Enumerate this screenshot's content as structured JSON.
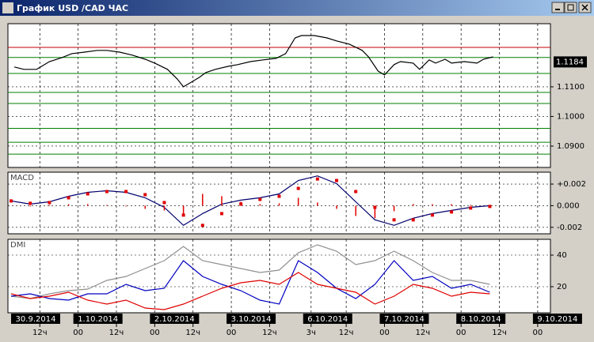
{
  "window": {
    "title": "График USD /CAD  ЧАС"
  },
  "chart_data": [
    {
      "type": "line",
      "color": "#000000",
      "x": [
        -20,
        -17,
        -13,
        -9,
        -5,
        -2,
        2,
        6,
        9,
        13,
        17,
        21,
        24,
        28,
        31,
        33,
        35,
        38,
        40,
        43,
        47,
        50,
        54,
        58,
        62,
        65,
        68,
        70,
        74,
        78,
        81,
        85,
        89,
        91,
        94,
        96,
        99,
        101,
        105,
        107,
        110,
        112,
        115,
        117,
        121,
        125,
        127,
        130
      ],
      "values": [
        1.1167,
        1.1159,
        1.1159,
        1.1185,
        1.1199,
        1.1212,
        1.1217,
        1.1223,
        1.1223,
        1.1217,
        1.1207,
        1.1193,
        1.118,
        1.1159,
        1.1127,
        1.11,
        1.1113,
        1.1132,
        1.1148,
        1.1159,
        1.1169,
        1.1175,
        1.1185,
        1.1191,
        1.1196,
        1.1212,
        1.1265,
        1.1273,
        1.1273,
        1.1265,
        1.1255,
        1.1244,
        1.1223,
        1.1201,
        1.1153,
        1.114,
        1.1175,
        1.1185,
        1.118,
        1.1159,
        1.1191,
        1.118,
        1.1193,
        1.118,
        1.1185,
        1.118,
        1.1193,
        1.1201
      ],
      "xlim": [
        -22,
        148
      ],
      "ylim": [
        1.0828,
        1.1313
      ],
      "yticks": [
        {
          "value": 1.09,
          "label": "1.0900"
        },
        {
          "value": 1.1,
          "label": "1.1000"
        },
        {
          "value": 1.11,
          "label": "1.1100"
        }
      ],
      "last_price": 1.1184,
      "levels": [
        {
          "value": 1.1233,
          "color": "#c00000"
        },
        {
          "value": 1.1199,
          "color": "#008000"
        },
        {
          "value": 1.1145,
          "color": "#008000"
        },
        {
          "value": 1.1081,
          "color": "#008000"
        },
        {
          "value": 1.1044,
          "color": "#008000"
        },
        {
          "value": 1.096,
          "color": "#008000"
        },
        {
          "value": 1.0913,
          "color": "#008000"
        },
        {
          "value": 1.0873,
          "color": "#008000"
        }
      ]
    },
    {
      "type": "line",
      "title": "MACD",
      "x": [
        -21,
        -15,
        -9,
        -3,
        3,
        9,
        15,
        21,
        27,
        33,
        39,
        45,
        51,
        57,
        63,
        69,
        75,
        81,
        87,
        93,
        99,
        105,
        111,
        117,
        123,
        129
      ],
      "xlim": [
        -22,
        148
      ],
      "ylim": [
        -0.0026,
        0.0031
      ],
      "yticks": [
        {
          "value": -0.002,
          "label": "-0.002"
        },
        {
          "value": 0,
          "label": "0.000"
        },
        {
          "value": 0.002,
          "label": "+0.002"
        }
      ],
      "series": [
        {
          "color": "#00006e",
          "style": "line",
          "values": [
            0.00044,
            0.00015,
            0.00036,
            0.00087,
            0.00124,
            0.00138,
            0.00124,
            0.00073,
            -0.00015,
            -0.00182,
            -0.00073,
            0.00015,
            0.00051,
            0.00073,
            0.00109,
            0.00233,
            0.00276,
            0.00204,
            0.00036,
            -0.00131,
            -0.00182,
            -0.00116,
            -0.00073,
            -0.00044,
            -0.00015,
            0
          ]
        },
        {
          "color": "#e00000",
          "style": "dots",
          "values": [
            0.00044,
            0.00022,
            0.00029,
            0.00073,
            0.00109,
            0.00131,
            0.00131,
            0.00102,
            0.00029,
            -0.00087,
            -0.00182,
            -0.00073,
            0.00015,
            0.00058,
            0.00087,
            0.0016,
            0.00247,
            0.00233,
            0.00131,
            -0.00015,
            -0.00131,
            -0.00131,
            -0.00087,
            -0.00058,
            -0.00022,
            -7e-05
          ]
        },
        {
          "color": "#e00000",
          "style": "bars",
          "values": [
            0,
            -7e-05,
            7e-05,
            0.00014,
            0.00015,
            7e-05,
            -7e-05,
            -0.00029,
            -0.00044,
            -0.00095,
            0.00109,
            0.00088,
            0.00036,
            0.00015,
            0.00022,
            0.00073,
            0.00029,
            -0.00029,
            -0.00095,
            -0.00116,
            -0.00051,
            0.00015,
            0.00014,
            0.00014,
            7e-05,
            7e-05
          ]
        }
      ]
    },
    {
      "type": "line",
      "title": "DMI",
      "x": [
        -21,
        -15,
        -9,
        -3,
        3,
        9,
        15,
        21,
        27,
        33,
        39,
        45,
        51,
        57,
        63,
        69,
        75,
        81,
        87,
        93,
        99,
        105,
        111,
        117,
        123,
        129
      ],
      "xlim": [
        -22,
        148
      ],
      "ylim": [
        3.5,
        50
      ],
      "yticks": [
        20,
        40
      ],
      "series": [
        {
          "color": "#909090",
          "style": "line",
          "values": [
            14,
            12.5,
            15.5,
            17.5,
            18.5,
            24,
            26.5,
            31.5,
            36.5,
            45.5,
            36.5,
            34,
            31.5,
            29,
            30.5,
            41.5,
            46.5,
            42.5,
            34,
            36.5,
            42.5,
            36.5,
            29,
            24,
            24,
            21.5
          ]
        },
        {
          "color": "#0000c0",
          "style": "line",
          "values": [
            14,
            15.5,
            12.5,
            11.5,
            15.5,
            15.5,
            21.5,
            17.5,
            19,
            36.5,
            26.5,
            21.5,
            17.5,
            11.5,
            9,
            36.5,
            29,
            19,
            12.5,
            21.5,
            36.5,
            24,
            26.5,
            19,
            21.5,
            16.5
          ]
        },
        {
          "color": "#e00000",
          "style": "line",
          "values": [
            15.5,
            12.5,
            14,
            16.5,
            11.5,
            9,
            11.5,
            6.5,
            5.5,
            9,
            14,
            19,
            22.5,
            24,
            21.5,
            29,
            21.5,
            19,
            16.5,
            9,
            14,
            21.5,
            19,
            14,
            16.5,
            15.5
          ]
        }
      ],
      "xticks": [
        {
          "value": -24,
          "label": "30.9.2014"
        },
        {
          "value": 0,
          "label": "1.10.2014"
        },
        {
          "value": 24,
          "label": "2.10.2014"
        },
        {
          "value": 48,
          "label": "3.10.2014"
        },
        {
          "value": 72,
          "label": "6.10.2014"
        },
        {
          "value": 96,
          "label": "7.10.2014"
        },
        {
          "value": 120,
          "label": "8.10.2014"
        },
        {
          "value": 144,
          "label": "9.10.2014"
        }
      ],
      "hour_ticks": [
        {
          "value": -12,
          "label": "12ч"
        },
        {
          "value": 0,
          "label": "00"
        },
        {
          "value": 12,
          "label": "12ч"
        },
        {
          "value": 24,
          "label": "00"
        },
        {
          "value": 36,
          "label": "12ч"
        },
        {
          "value": 48,
          "label": "00"
        },
        {
          "value": 60,
          "label": "12ч"
        },
        {
          "value": 73,
          "label": "3ч"
        },
        {
          "value": 84,
          "label": "12ч"
        },
        {
          "value": 96,
          "label": "00"
        },
        {
          "value": 108,
          "label": "12ч"
        },
        {
          "value": 120,
          "label": "00"
        },
        {
          "value": 132,
          "label": "12ч"
        },
        {
          "value": 144,
          "label": "00"
        }
      ]
    }
  ]
}
